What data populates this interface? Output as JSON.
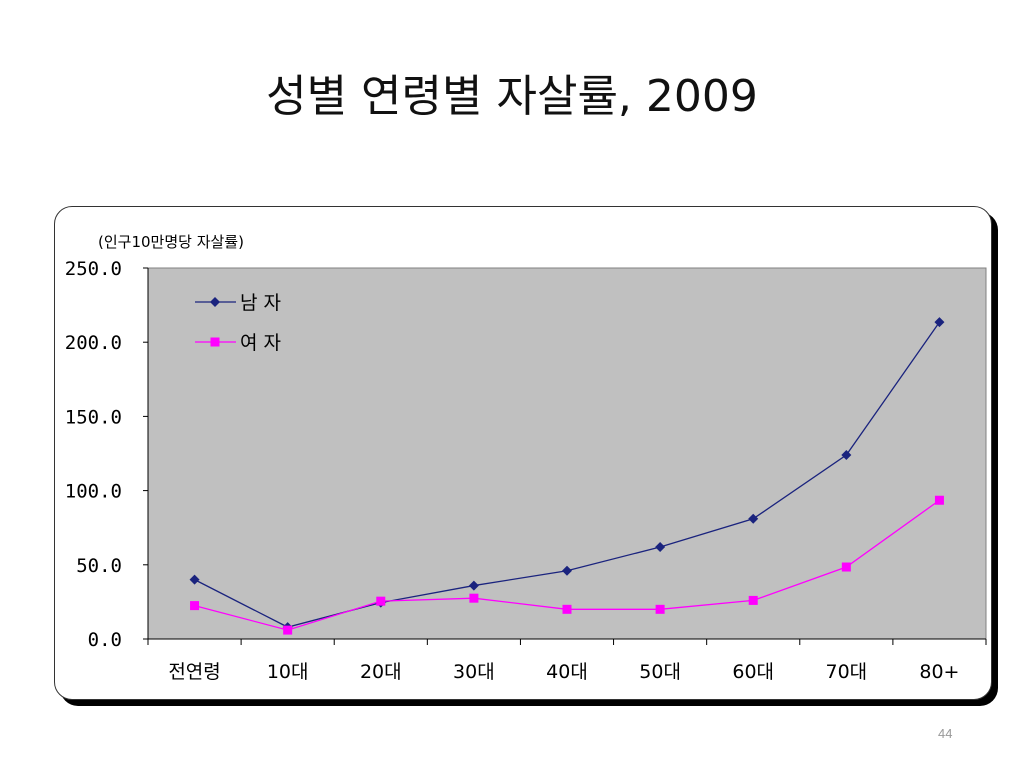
{
  "slide": {
    "title": "성별 연령별 자살률, 2009",
    "page_number": "44"
  },
  "chart_data": {
    "type": "line",
    "title": "",
    "unit_label": "(인구10만명당 자살률)",
    "categories": [
      "전연령",
      "10대",
      "20대",
      "30대",
      "40대",
      "50대",
      "60대",
      "70대",
      "80+"
    ],
    "ylim": [
      0,
      250
    ],
    "yticks": [
      0,
      50,
      100,
      150,
      200,
      250
    ],
    "ytick_labels": [
      "0.0",
      "50.0",
      "100.0",
      "150.0",
      "200.0",
      "250.0"
    ],
    "grid": false,
    "legend": "top-left",
    "plot_background": "#c0c0c0",
    "series": [
      {
        "name": "남 자",
        "color": "#1a237e",
        "marker": "diamond",
        "values": [
          40.0,
          8.0,
          24.5,
          36.0,
          46.0,
          62.0,
          81.0,
          124.0,
          213.5
        ]
      },
      {
        "name": "여 자",
        "color": "#ff00ff",
        "marker": "square",
        "values": [
          22.5,
          6.0,
          25.5,
          27.5,
          20.0,
          20.0,
          26.0,
          48.5,
          93.5
        ]
      }
    ]
  }
}
